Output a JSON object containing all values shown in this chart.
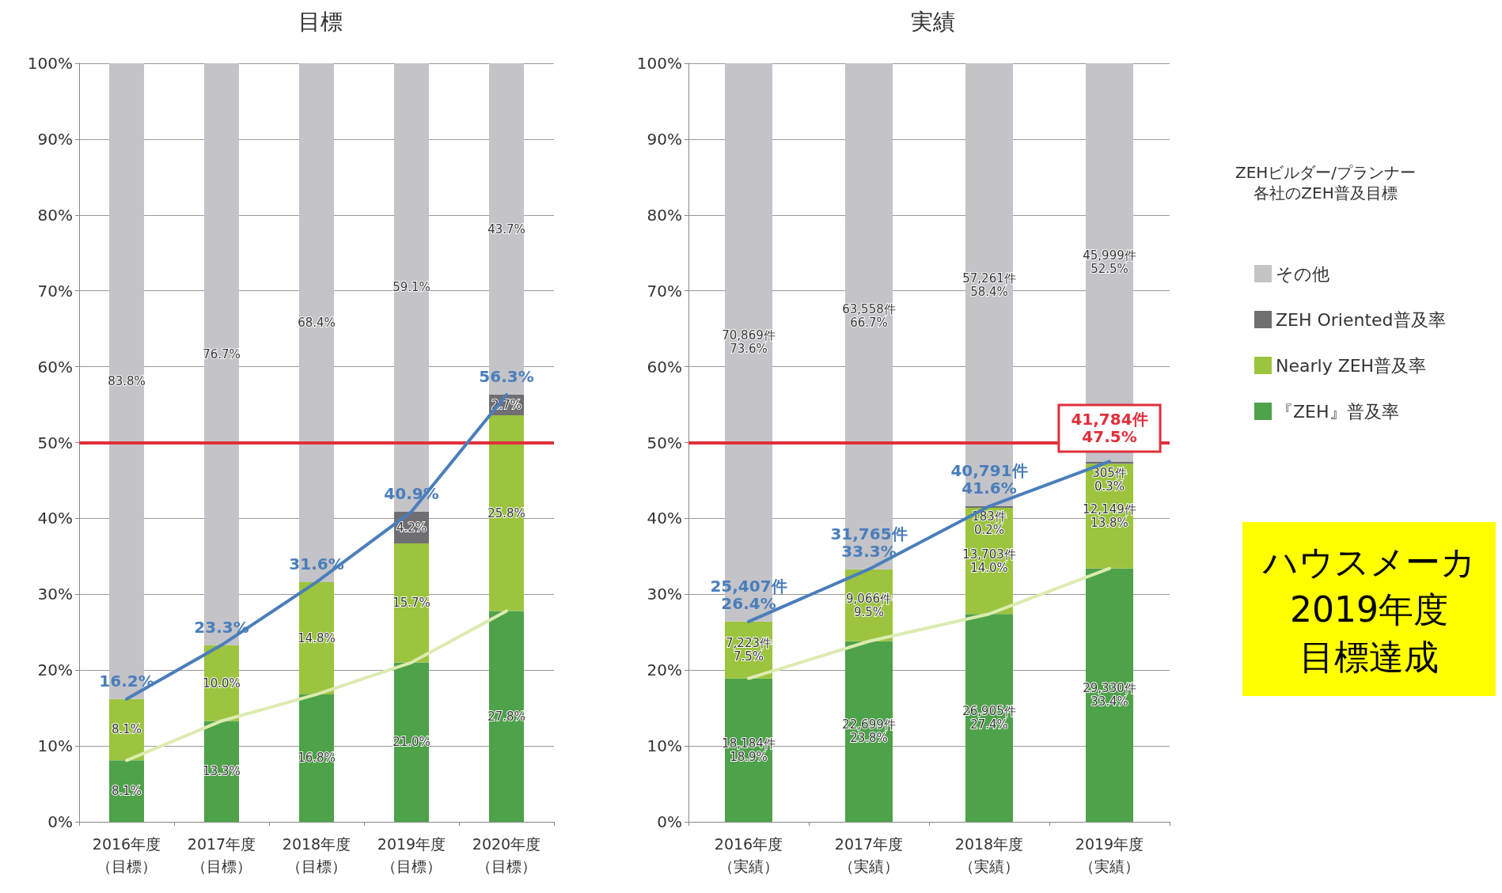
{
  "chart_data": [
    {
      "type": "bar",
      "title": "目標",
      "stacked": true,
      "legend": false,
      "grid": "y",
      "marker": "none",
      "categories": [
        "2016年度（目標）",
        "2017年度（目標）",
        "2018年度（目標）",
        "2019年度（目標）",
        "2020年度（目標）"
      ],
      "ylim": [
        0,
        100
      ],
      "yticks": [
        {
          "value": 0,
          "label": "0%"
        },
        {
          "value": 10,
          "label": "10%"
        },
        {
          "value": 20,
          "label": "20%"
        },
        {
          "value": 30,
          "label": "30%"
        },
        {
          "value": 40,
          "label": "40%"
        },
        {
          "value": 50,
          "label": "50%"
        },
        {
          "value": 60,
          "label": "60%"
        },
        {
          "value": 70,
          "label": "70%"
        },
        {
          "value": 80,
          "label": "80%"
        },
        {
          "value": 90,
          "label": "90%"
        },
        {
          "value": 100,
          "label": "100%"
        }
      ],
      "series": [
        {
          "color": "#4ea24a",
          "values": [
            8.1,
            13.3,
            16.8,
            21.0,
            27.8
          ],
          "value_labels": [
            "8.1%",
            "13.3%",
            "16.8%",
            "21.0%",
            "27.8%"
          ]
        },
        {
          "color": "#9cc43e",
          "values": [
            8.1,
            10.0,
            14.8,
            15.7,
            25.8
          ],
          "value_labels": [
            "8.1%",
            "10.0%",
            "14.8%",
            "15.7%",
            "25.8%"
          ]
        },
        {
          "color": "#6f6f73",
          "values": [
            null,
            null,
            null,
            4.2,
            2.7
          ],
          "value_labels": [
            null,
            null,
            null,
            "4.2%",
            "2.7%"
          ]
        },
        {
          "color": "#c3c3c8",
          "values": [
            83.8,
            76.7,
            68.4,
            59.1,
            43.7
          ],
          "value_labels": [
            "83.8%",
            "76.7%",
            "68.4%",
            "59.1%",
            "43.7%"
          ]
        },
        {
          "type": "line",
          "color": "#4a7ebb",
          "values": [
            16.2,
            23.3,
            31.6,
            40.9,
            56.3
          ],
          "value_labels": [
            "16.2%",
            "23.3%",
            "31.6%",
            "40.9%",
            "56.3%"
          ]
        },
        {
          "type": "line",
          "color": "#dcebb0",
          "values": [
            8.1,
            13.3,
            16.8,
            21.0,
            27.8
          ]
        }
      ],
      "ref_lines": [
        {
          "axis": "y",
          "value": 50,
          "color": "#e0303c"
        }
      ]
    },
    {
      "type": "bar",
      "title": "実績",
      "stacked": true,
      "legend": "right",
      "legend_title": "ZEHビルダー/プランナー各社のZEH普及目標",
      "grid": "y",
      "marker": "none",
      "categories": [
        "2016年度（実績）",
        "2017年度（実績）",
        "2018年度（実績）",
        "2019年度（実績）"
      ],
      "ylim": [
        0,
        100
      ],
      "yticks": [
        {
          "value": 0,
          "label": "0%"
        },
        {
          "value": 10,
          "label": "10%"
        },
        {
          "value": 20,
          "label": "20%"
        },
        {
          "value": 30,
          "label": "30%"
        },
        {
          "value": 40,
          "label": "40%"
        },
        {
          "value": 50,
          "label": "50%"
        },
        {
          "value": 60,
          "label": "60%"
        },
        {
          "value": 70,
          "label": "70%"
        },
        {
          "value": 80,
          "label": "80%"
        },
        {
          "value": 90,
          "label": "90%"
        },
        {
          "value": 100,
          "label": "100%"
        }
      ],
      "series": [
        {
          "name": "『ZEH』普及率",
          "color": "#4ea24a",
          "values": [
            18.9,
            23.8,
            27.4,
            33.4
          ],
          "value_labels": [
            "18,184件\n18.9%",
            "22,699件\n23.8%",
            "26,905件\n27.4%",
            "29,330件\n33.4%"
          ]
        },
        {
          "name": "Nearly ZEH普及率",
          "color": "#9cc43e",
          "values": [
            7.5,
            9.5,
            14.0,
            13.8
          ],
          "value_labels": [
            "7,223件\n7.5%",
            "9,066件\n9.5%",
            "13,703件\n14.0%",
            "12,149件\n13.8%"
          ]
        },
        {
          "name": "ZEH Oriented普及率",
          "color": "#6f6f73",
          "values": [
            null,
            null,
            0.2,
            0.3
          ],
          "value_labels": [
            null,
            null,
            "183件\n0.2%",
            "305件\n0.3%"
          ]
        },
        {
          "name": "その他",
          "color": "#c3c3c8",
          "values": [
            73.6,
            66.7,
            58.4,
            52.5
          ],
          "value_labels": [
            "70,869件\n73.6%",
            "63,558件\n66.7%",
            "57,261件\n58.4%",
            "45,999件\n52.5%"
          ]
        },
        {
          "type": "line",
          "color": "#4a7ebb",
          "values": [
            26.4,
            33.3,
            41.6,
            47.5
          ],
          "value_labels": [
            "25,407件\n26.4%",
            "31,765件\n33.3%",
            "40,791件\n41.6%",
            null
          ]
        },
        {
          "type": "line",
          "color": "#dcebb0",
          "values": [
            18.9,
            23.8,
            27.4,
            33.4
          ]
        }
      ],
      "ref_lines": [
        {
          "axis": "y",
          "value": 50,
          "color": "#e0303c"
        }
      ],
      "annotations": [
        {
          "text": "41,784件\n47.5%",
          "x": "2019年度（実績）",
          "y": 47.5
        },
        "ハウスメーカ",
        "2019年度",
        "目標達成"
      ]
    }
  ]
}
